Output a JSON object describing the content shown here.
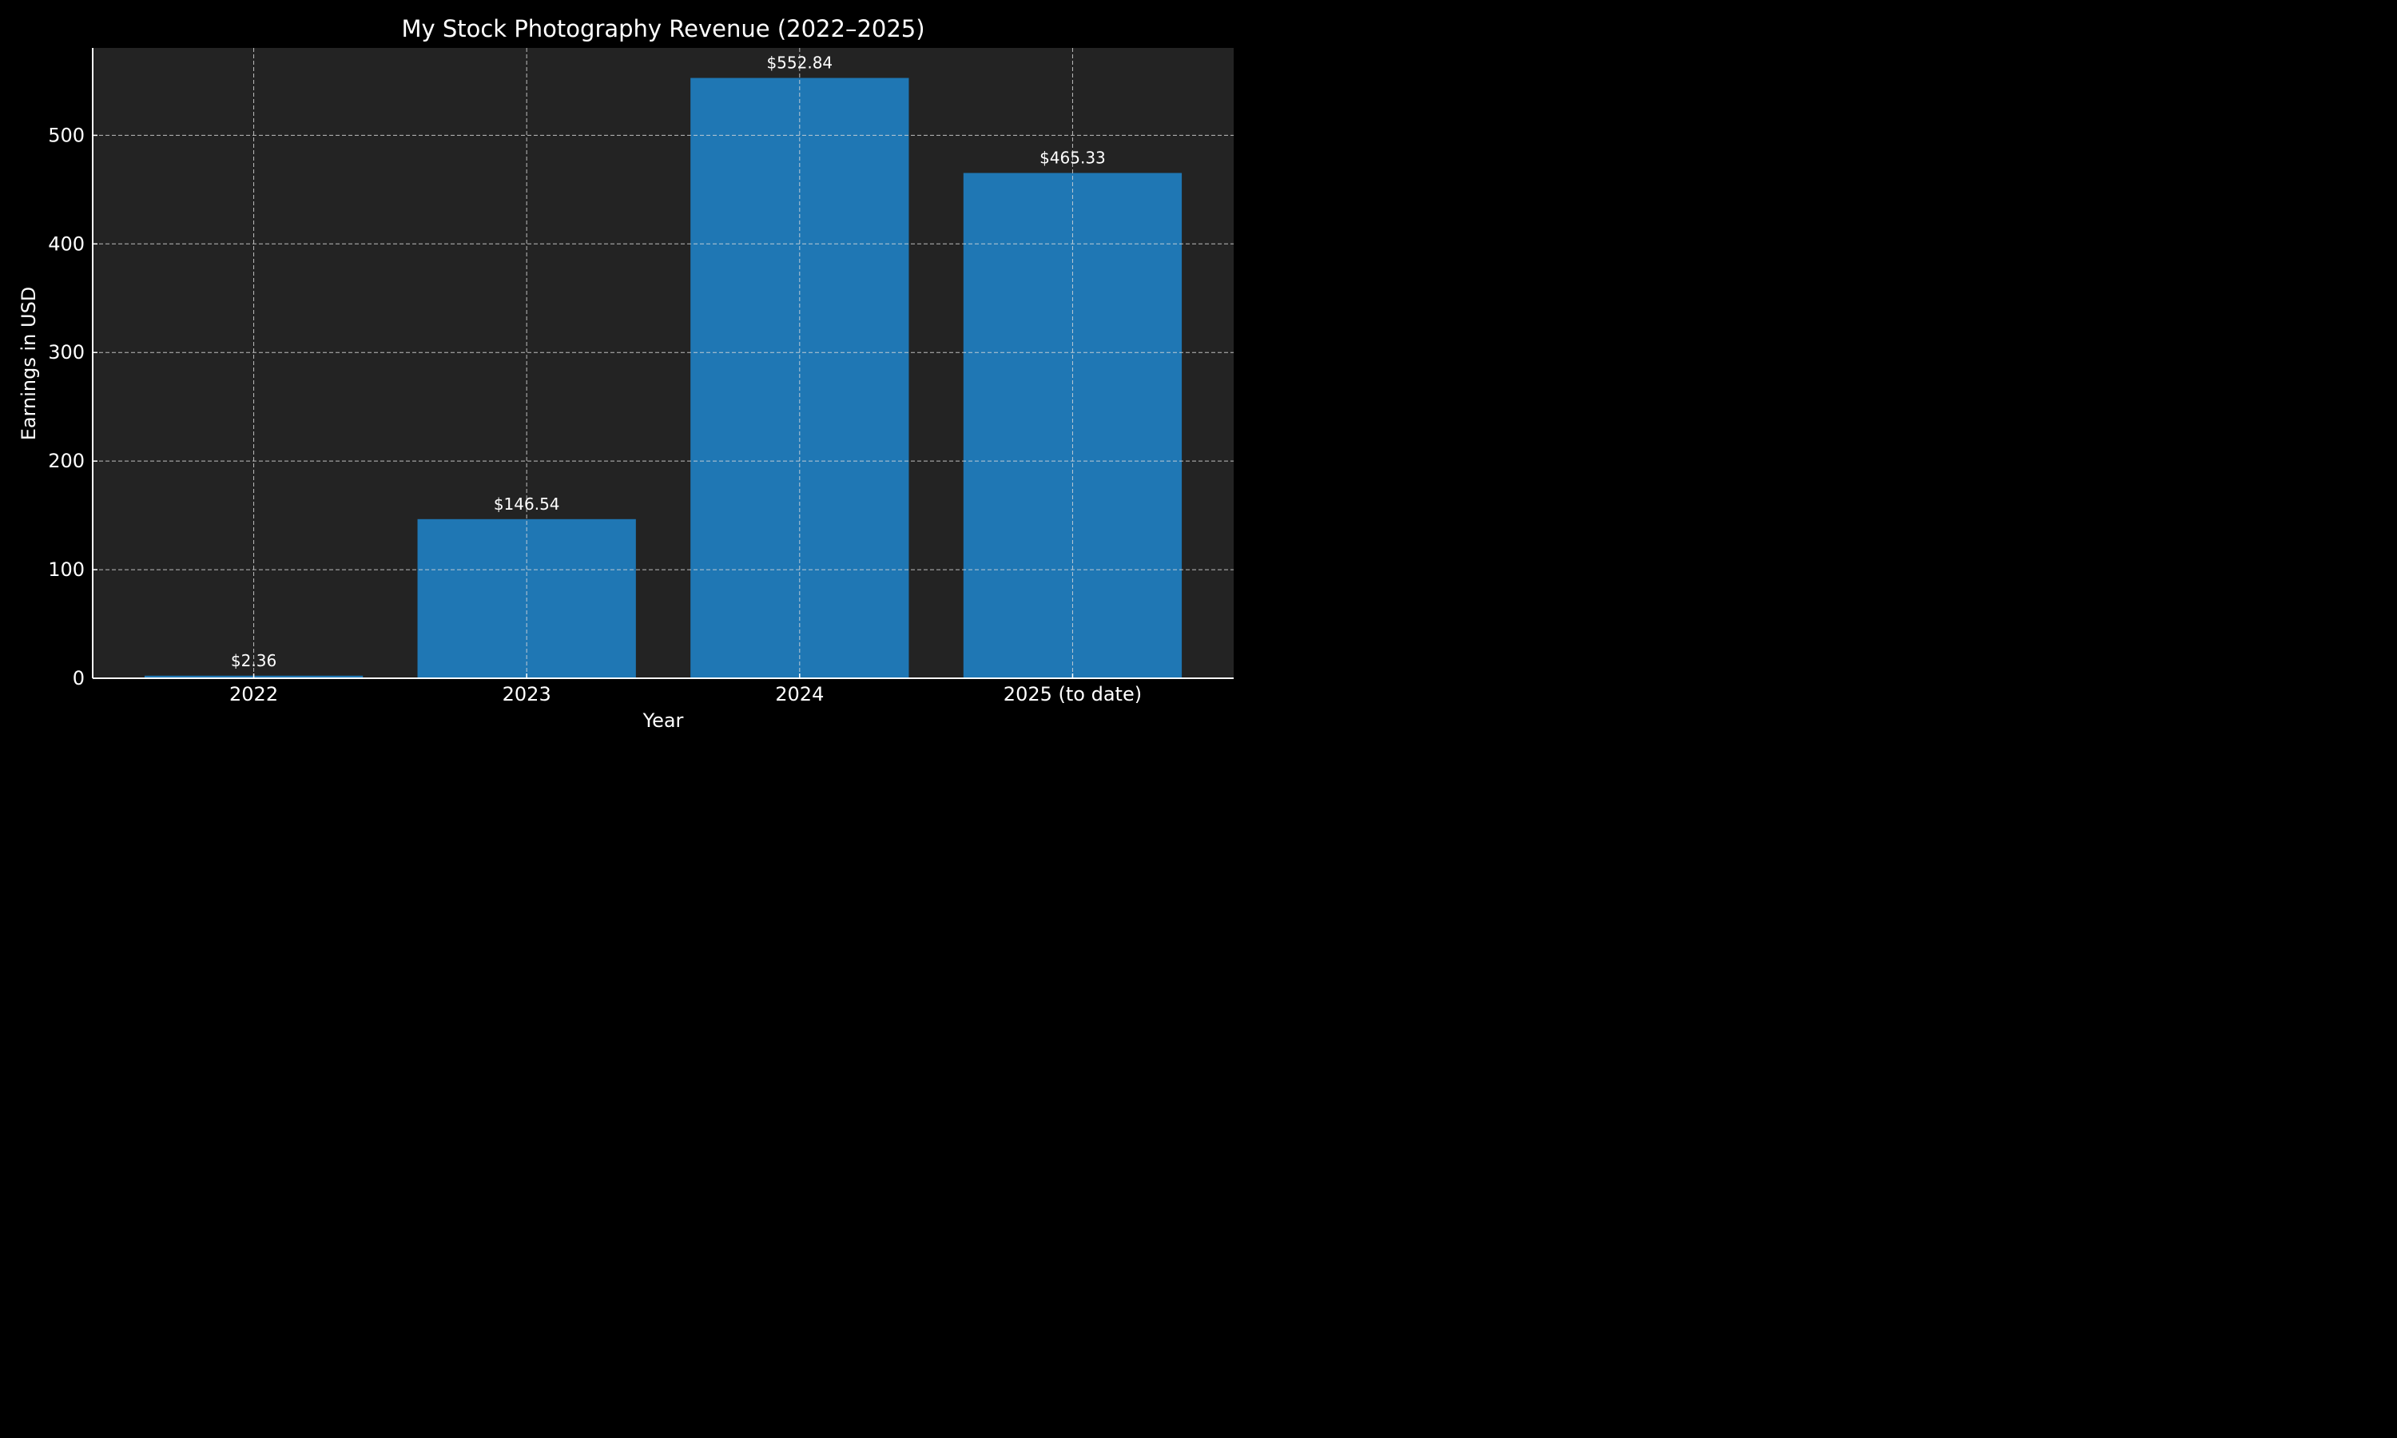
{
  "chart_data": {
    "type": "bar",
    "title": "My Stock Photography Revenue (2022–2025)",
    "xlabel": "Year",
    "ylabel": "Earnings in USD",
    "categories": [
      "2022",
      "2023",
      "2024",
      "2025 (to date)"
    ],
    "values": [
      2.36,
      146.54,
      552.84,
      465.33
    ],
    "data_labels": [
      "$2.36",
      "$146.54",
      "$552.84",
      "$465.33"
    ],
    "ylim": [
      0,
      580.48
    ],
    "yticks": [
      0,
      100,
      200,
      300,
      400,
      500
    ],
    "grid": true,
    "legend": "none"
  },
  "colors": {
    "figure_background": "#000000",
    "plot_background": "#232323",
    "bar": "#1f77b4",
    "text": "#ffffff",
    "grid": "#d9d9d9"
  }
}
